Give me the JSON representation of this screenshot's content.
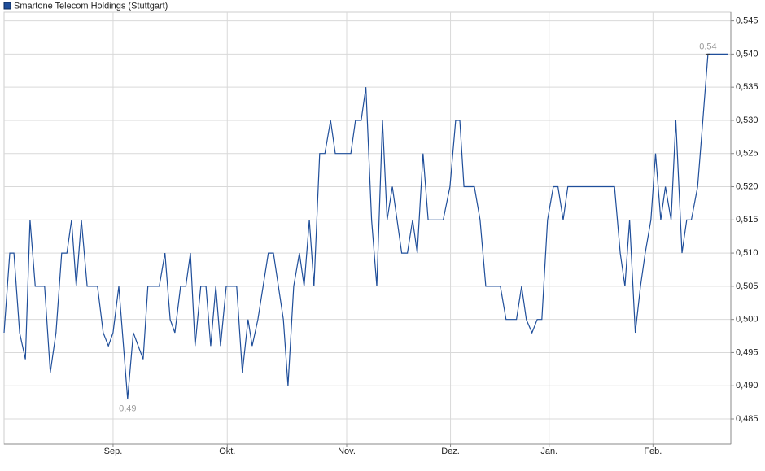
{
  "chart_data": {
    "type": "line",
    "series": [
      {
        "name": "Smartone Telecom Holdings (Stuttgart)",
        "color": "#1f4e9a",
        "x": [
          0,
          1.1,
          1.9,
          3.0,
          4.1,
          5.0,
          6.0,
          7.8,
          8.9,
          10.0,
          11.1,
          12.1,
          13.0,
          13.9,
          14.9,
          16.0,
          18.0,
          19.1,
          20.1,
          21.0,
          22.1,
          23.8,
          24.9,
          26.8,
          27.7,
          29.9,
          31.0,
          32.0,
          32.9,
          34.0,
          35.0,
          35.9,
          36.8,
          37.9,
          38.9,
          39.8,
          40.8,
          41.7,
          42.8,
          44.8,
          45.9,
          47.0,
          47.8,
          48.9,
          50.9,
          51.9,
          53.8,
          54.7,
          55.8,
          56.9,
          57.8,
          58.8,
          59.7,
          60.8,
          61.8,
          62.9,
          63.8,
          66.8,
          67.7,
          68.8,
          69.7,
          70.8,
          71.8,
          72.9,
          73.8,
          74.8,
          75.7,
          76.6,
          77.7,
          78.7,
          79.6,
          80.7,
          81.7,
          84.6,
          85.9,
          87.0,
          87.8,
          88.6,
          90.6,
          91.7,
          92.8,
          95.6,
          96.7,
          98.7,
          99.7,
          100.6,
          101.7,
          102.7,
          103.6,
          104.7,
          105.8,
          106.7,
          107.7,
          108.6,
          117.6,
          118.7,
          119.6,
          120.5,
          121.6,
          122.6,
          123.5,
          124.6,
          125.5,
          126.5,
          127.4,
          128.5,
          129.4,
          130.6,
          131.5,
          132.4,
          133.6,
          134.6,
          135.6,
          139.5
        ],
        "values": [
          0.498,
          0.51,
          0.51,
          0.498,
          0.494,
          0.515,
          0.505,
          0.505,
          0.492,
          0.498,
          0.51,
          0.51,
          0.515,
          0.505,
          0.515,
          0.505,
          0.505,
          0.498,
          0.496,
          0.498,
          0.505,
          0.488,
          0.498,
          0.494,
          0.505,
          0.505,
          0.51,
          0.5,
          0.498,
          0.505,
          0.505,
          0.51,
          0.496,
          0.505,
          0.505,
          0.496,
          0.505,
          0.496,
          0.505,
          0.505,
          0.492,
          0.5,
          0.496,
          0.5,
          0.51,
          0.51,
          0.5,
          0.49,
          0.505,
          0.51,
          0.505,
          0.515,
          0.505,
          0.525,
          0.525,
          0.53,
          0.525,
          0.525,
          0.53,
          0.53,
          0.535,
          0.515,
          0.505,
          0.53,
          0.515,
          0.52,
          0.515,
          0.51,
          0.51,
          0.515,
          0.51,
          0.525,
          0.515,
          0.515,
          0.52,
          0.53,
          0.53,
          0.52,
          0.52,
          0.515,
          0.505,
          0.505,
          0.5,
          0.5,
          0.505,
          0.5,
          0.498,
          0.5,
          0.5,
          0.515,
          0.52,
          0.52,
          0.515,
          0.52,
          0.52,
          0.51,
          0.505,
          0.515,
          0.498,
          0.505,
          0.51,
          0.515,
          0.525,
          0.515,
          0.52,
          0.515,
          0.53,
          0.51,
          0.515,
          0.515,
          0.52,
          0.53,
          0.54,
          0.54
        ]
      }
    ],
    "annotations": [
      {
        "x": 23.8,
        "value": 0.488,
        "label": "0,49"
      },
      {
        "x": 135.6,
        "value": 0.54,
        "label": "0,54"
      }
    ],
    "xlim": [
      0,
      140
    ],
    "xticks": [
      {
        "value": 21,
        "label": "Sep."
      },
      {
        "value": 43,
        "label": "Okt."
      },
      {
        "value": 66,
        "label": "Nov."
      },
      {
        "value": 86,
        "label": "Dez."
      },
      {
        "value": 105,
        "label": "Jan."
      },
      {
        "value": 125,
        "label": "Feb."
      }
    ],
    "ylim": [
      0.4812,
      0.5463
    ],
    "yticks": [
      {
        "value": 0.485,
        "label": "0,485"
      },
      {
        "value": 0.49,
        "label": "0,490"
      },
      {
        "value": 0.495,
        "label": "0,495"
      },
      {
        "value": 0.5,
        "label": "0,500"
      },
      {
        "value": 0.505,
        "label": "0,505"
      },
      {
        "value": 0.51,
        "label": "0,510"
      },
      {
        "value": 0.515,
        "label": "0,515"
      },
      {
        "value": 0.52,
        "label": "0,520"
      },
      {
        "value": 0.525,
        "label": "0,525"
      },
      {
        "value": 0.53,
        "label": "0,530"
      },
      {
        "value": 0.535,
        "label": "0,535"
      },
      {
        "value": 0.54,
        "label": "0,540"
      },
      {
        "value": 0.545,
        "label": "0,545"
      }
    ],
    "grid": true
  }
}
